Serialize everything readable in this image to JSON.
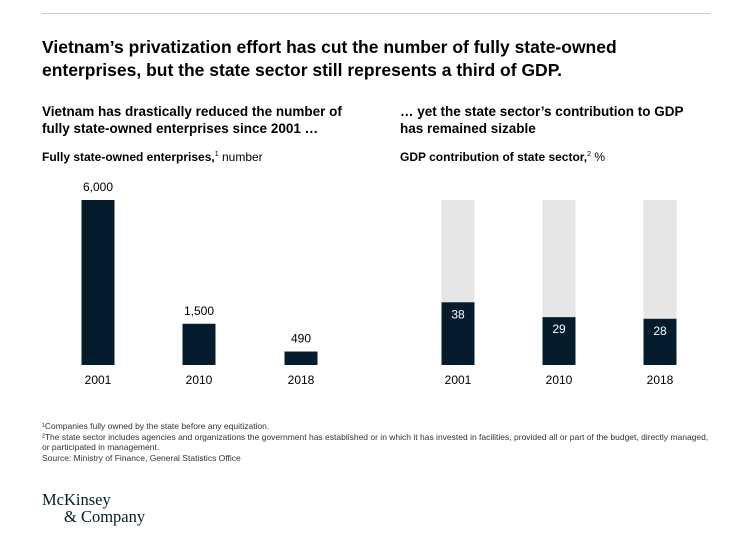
{
  "title": "Vietnam’s privatization effort has cut the number of fully state-owned enterprises, but the state sector still represents a third of GDP.",
  "chart_data": [
    {
      "type": "bar",
      "title": "Vietnam has drastically reduced the number of fully state-owned enterprises since 2001 …",
      "ylabel_bold": "Fully state-owned enterprises,",
      "ylabel_sup": "1",
      "ylabel_unit": "number",
      "categories": [
        "2001",
        "2010",
        "2018"
      ],
      "values": [
        6000,
        1500,
        490
      ],
      "value_labels": [
        "6,000",
        "1,500",
        "490"
      ],
      "ylim": [
        0,
        6000
      ],
      "color": "#051c2c"
    },
    {
      "type": "bar",
      "title": "… yet the state sector’s contribution to GDP has remained sizable",
      "ylabel_bold": "GDP contribution of state sector,",
      "ylabel_sup": "2",
      "ylabel_unit": "%",
      "categories": [
        "2001",
        "2010",
        "2018"
      ],
      "values": [
        38,
        29,
        28
      ],
      "value_labels": [
        "38",
        "29",
        "28"
      ],
      "ylim": [
        0,
        100
      ],
      "color": "#051c2c",
      "background_color": "#e6e6e6"
    }
  ],
  "footnotes": [
    "¹Companies fully owned by the state before any equitization.",
    "²The state sector includes agencies and organizations the government has established or in which it has invested in facilities, provided all or part of the budget, directly managed, or participated in management.",
    "Source: Ministry of Finance, General Statistics Office"
  ],
  "logo": {
    "line1": "McKinsey",
    "line2": "& Company"
  }
}
